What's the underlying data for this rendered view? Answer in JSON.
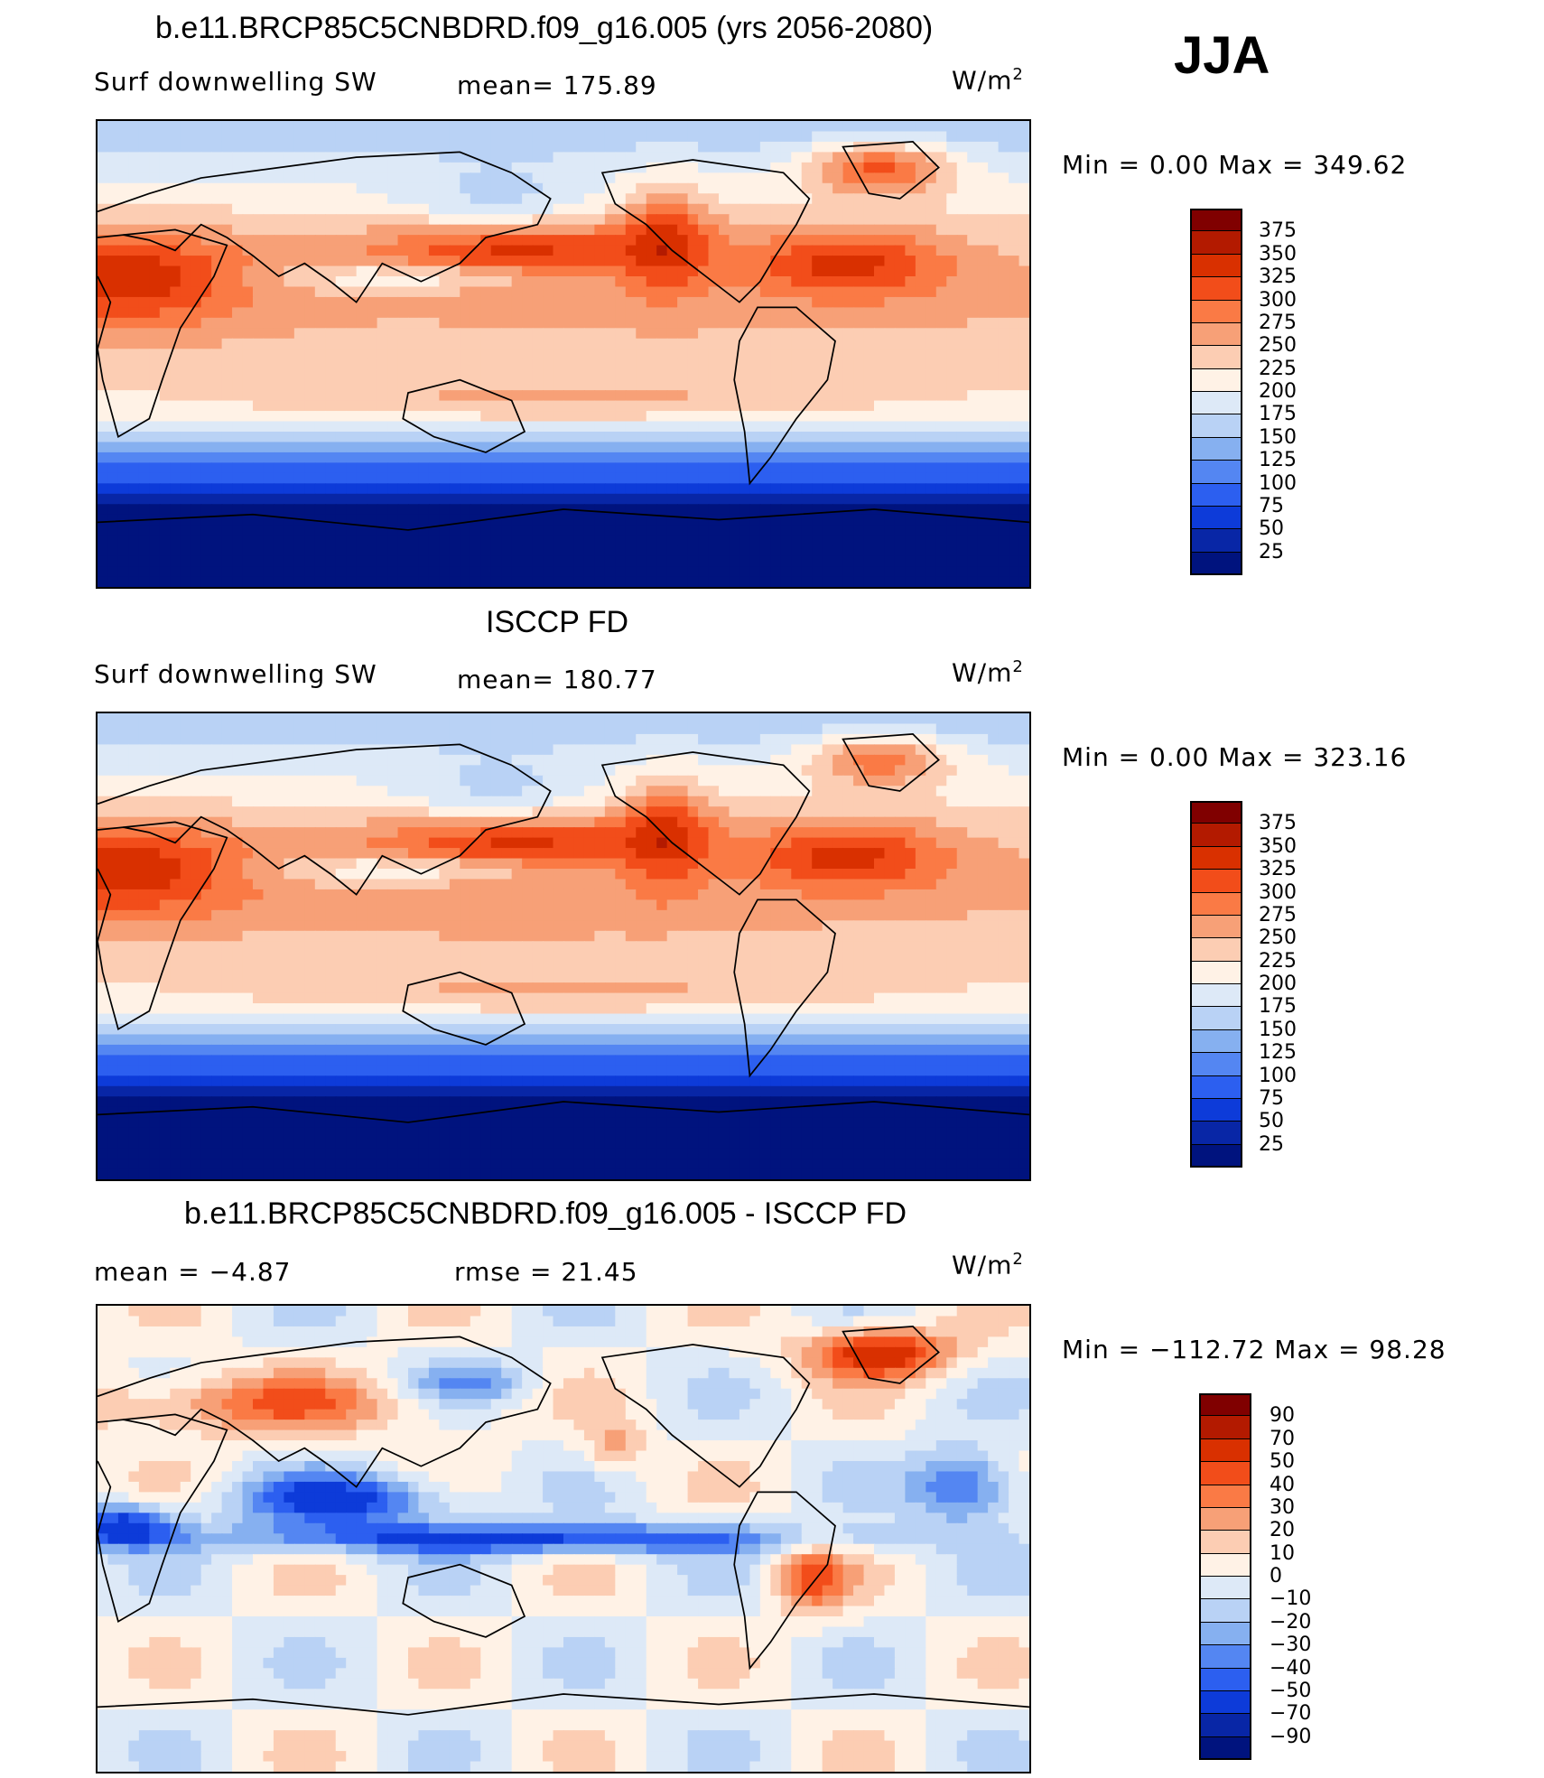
{
  "season": "JJA",
  "panels": [
    {
      "title": "b.e11.BRCP85C5CNBDRD.f09_g16.005 (yrs 2056-2080)",
      "left_label": "Surf  downwelling SW",
      "stat_label": "mean=  175.89",
      "units": "W/m",
      "units_sup": "2",
      "minmax": "Min  =      0.00  Max  =  349.62",
      "colorbar": {
        "levels": [
          "375",
          "350",
          "325",
          "300",
          "275",
          "250",
          "225",
          "200",
          "175",
          "150",
          "125",
          "100",
          "75",
          "50",
          "25"
        ],
        "colors": [
          "#800000",
          "#b31a00",
          "#d93000",
          "#f24d1a",
          "#fa7a45",
          "#f7a077",
          "#fccdb3",
          "#fff2e6",
          "#dde9f7",
          "#b9d2f5",
          "#86b0f0",
          "#5486f2",
          "#2c5ff0",
          "#0d3bd9",
          "#0826a6",
          "#00137e"
        ]
      },
      "field_type": "absolute"
    },
    {
      "title": "ISCCP FD",
      "left_label": "Surf  downwelling SW",
      "stat_label": "mean=  180.77",
      "units": "W/m",
      "units_sup": "2",
      "minmax": "Min  =      0.00  Max  =  323.16",
      "colorbar": {
        "levels": [
          "375",
          "350",
          "325",
          "300",
          "275",
          "250",
          "225",
          "200",
          "175",
          "150",
          "125",
          "100",
          "75",
          "50",
          "25"
        ],
        "colors": [
          "#800000",
          "#b31a00",
          "#d93000",
          "#f24d1a",
          "#fa7a45",
          "#f7a077",
          "#fccdb3",
          "#fff2e6",
          "#dde9f7",
          "#b9d2f5",
          "#86b0f0",
          "#5486f2",
          "#2c5ff0",
          "#0d3bd9",
          "#0826a6",
          "#00137e"
        ]
      },
      "field_type": "absolute"
    },
    {
      "title": "b.e11.BRCP85C5CNBDRD.f09_g16.005 - ISCCP FD",
      "left_label": "mean  =   −4.87",
      "stat_label": "rmse  =   21.45",
      "units": "W/m",
      "units_sup": "2",
      "minmax": "Min  =  −112.72  Max  =    98.28",
      "colorbar": {
        "levels": [
          "90",
          "70",
          "50",
          "40",
          "30",
          "20",
          "10",
          "0",
          "−10",
          "−20",
          "−30",
          "−40",
          "−50",
          "−70",
          "−90"
        ],
        "colors": [
          "#800000",
          "#b31a00",
          "#d93000",
          "#f24d1a",
          "#fa7a45",
          "#f7a077",
          "#fccdb3",
          "#fff2e6",
          "#dde9f7",
          "#b9d2f5",
          "#86b0f0",
          "#5486f2",
          "#2c5ff0",
          "#0d3bd9",
          "#0826a6",
          "#00137e"
        ]
      },
      "field_type": "difference"
    }
  ]
}
